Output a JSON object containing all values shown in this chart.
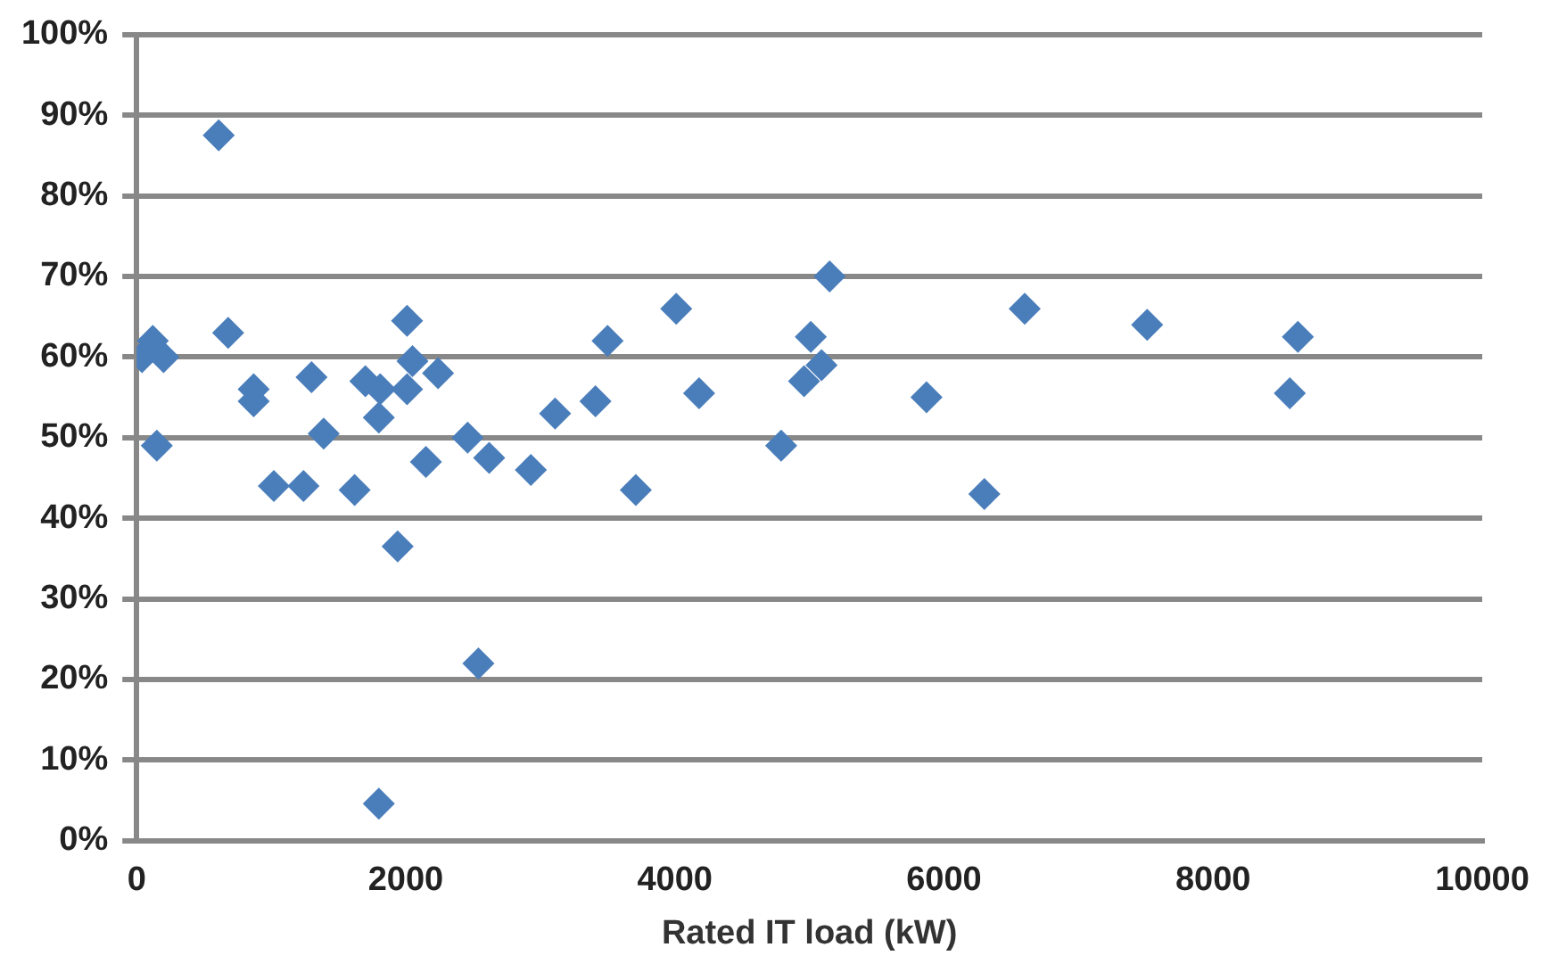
{
  "chart_data": {
    "type": "scatter",
    "xlabel": "Rated IT load (kW)",
    "x": [
      40,
      120,
      200,
      150,
      610,
      680,
      870,
      870,
      1020,
      1240,
      1300,
      1390,
      1620,
      1700,
      1810,
      1800,
      1800,
      1940,
      2010,
      2050,
      2010,
      2150,
      2240,
      2460,
      2540,
      2620,
      2930,
      3110,
      3410,
      3500,
      3710,
      4010,
      4180,
      4790,
      4960,
      5010,
      5090,
      5150,
      5870,
      6300,
      6600,
      7510,
      8570,
      8630
    ],
    "series": [
      {
        "color": "#4a7ebb",
        "values": [
          0.6,
          0.62,
          0.6,
          0.49,
          0.875,
          0.63,
          0.56,
          0.545,
          0.44,
          0.44,
          0.575,
          0.505,
          0.435,
          0.57,
          0.56,
          0.525,
          0.046,
          0.365,
          0.645,
          0.595,
          0.56,
          0.47,
          0.58,
          0.5,
          0.22,
          0.475,
          0.46,
          0.53,
          0.545,
          0.62,
          0.435,
          0.66,
          0.555,
          0.49,
          0.57,
          0.625,
          0.59,
          0.7,
          0.55,
          0.43,
          0.66,
          0.64,
          0.555,
          0.625
        ]
      }
    ],
    "xlim": [
      0,
      10000
    ],
    "xticks": [
      0,
      2000,
      4000,
      6000,
      8000,
      10000
    ],
    "ylim": [
      0,
      1
    ],
    "yticks": [
      {
        "value": 0,
        "label": "0%"
      },
      {
        "value": 0.1,
        "label": "10%"
      },
      {
        "value": 0.2,
        "label": "20%"
      },
      {
        "value": 0.3,
        "label": "30%"
      },
      {
        "value": 0.4,
        "label": "40%"
      },
      {
        "value": 0.5,
        "label": "50%"
      },
      {
        "value": 0.6,
        "label": "60%"
      },
      {
        "value": 0.7,
        "label": "70%"
      },
      {
        "value": 0.8,
        "label": "80%"
      },
      {
        "value": 0.9,
        "label": "90%"
      },
      {
        "value": 1,
        "label": "100%"
      }
    ],
    "grid": "y",
    "marker": "diamond",
    "legend": false
  }
}
